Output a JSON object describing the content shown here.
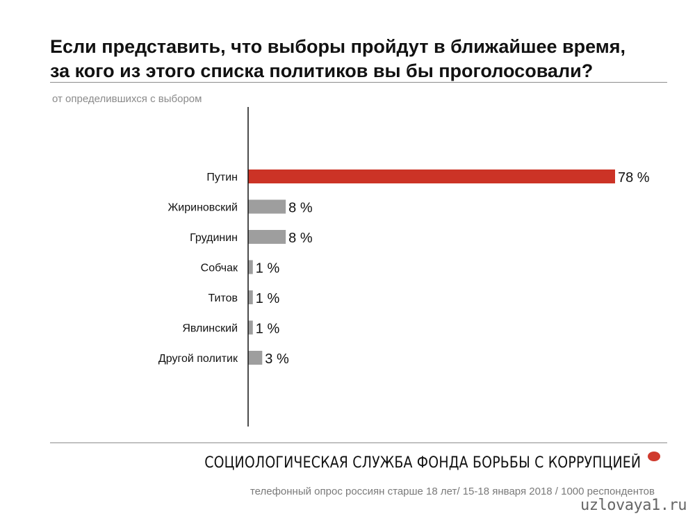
{
  "header": {
    "title_line1": "Если представить, что выборы пройдут в ближайшее время,",
    "title_line2": "за кого из этого списка политиков вы бы проголосовали?",
    "subtitle": "от определившихся с выбором"
  },
  "chart_data": {
    "type": "bar",
    "orientation": "horizontal",
    "categories": [
      "Путин",
      "Жириновский",
      "Грудинин",
      "Собчак",
      "Титов",
      "Явлинский",
      "Другой политик"
    ],
    "values": [
      78,
      8,
      8,
      1,
      1,
      1,
      3
    ],
    "value_suffix": " %",
    "xlim": [
      0,
      80
    ],
    "grid": false,
    "colors": {
      "highlight": "#cc3326",
      "default": "#9e9e9e",
      "axis": "#111111"
    },
    "highlight_index": 0
  },
  "footer": {
    "organization": "СОЦИОЛОГИЧЕСКАЯ СЛУЖБА ФОНДА БОРЬБЫ С КОРРУПЦИЕЙ",
    "note": "телефонный опрос россиян старше 18 лет/ 15-18 января 2018 / 1000 респондентов",
    "watermark": "uzlovaya1.ru",
    "dot_color": "#cf3a2d"
  }
}
